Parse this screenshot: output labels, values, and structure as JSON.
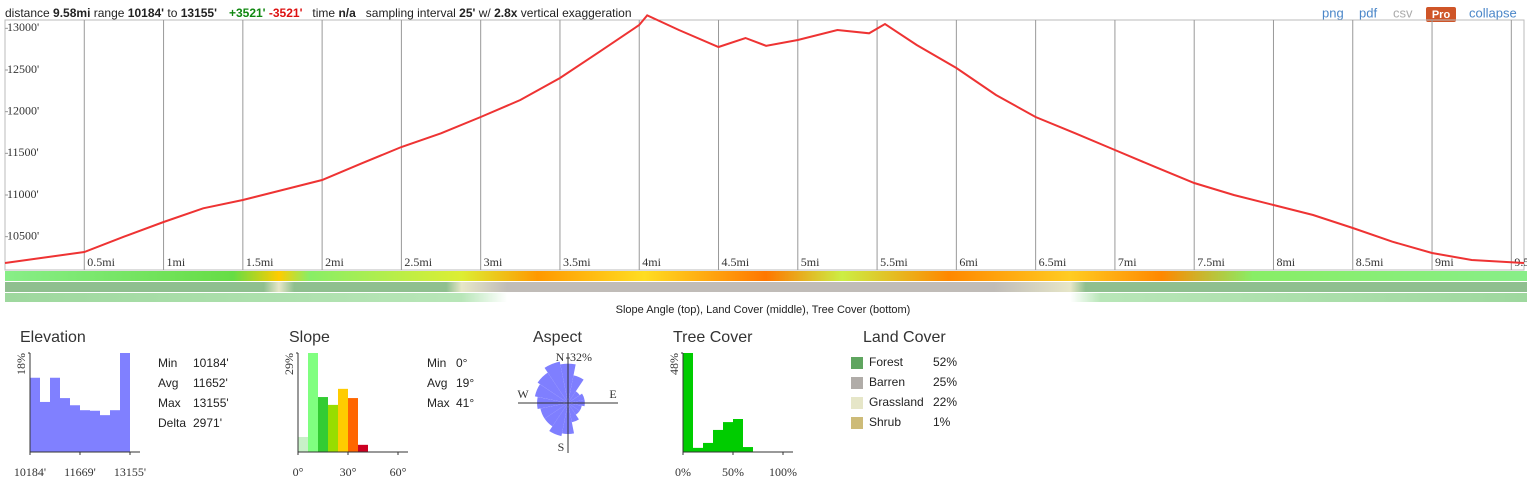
{
  "header": {
    "distance_label": "distance",
    "distance": "9.58mi",
    "range_label": "range",
    "range_min": "10184'",
    "range_to": "to",
    "range_max": "13155'",
    "gain": "+3521'",
    "loss": "-3521'",
    "time_label": "time",
    "time": "n/a",
    "interval_label": "sampling interval",
    "interval": "25'",
    "with": "w/",
    "exaggeration": "2.8x",
    "exaggeration_label": "vertical exaggeration"
  },
  "links": {
    "png": "png",
    "pdf": "pdf",
    "csv": "csv",
    "pro": "Pro",
    "collapse": "collapse"
  },
  "strips_caption": "Slope Angle (top), Land Cover (middle), Tree Cover (bottom)",
  "chart_data": [
    {
      "type": "line",
      "color": "#ee3333",
      "x": [
        0,
        0.25,
        0.5,
        0.75,
        1,
        1.25,
        1.5,
        1.75,
        2,
        2.25,
        2.5,
        2.75,
        3,
        3.25,
        3.5,
        3.75,
        4,
        4.05,
        4.25,
        4.5,
        4.67,
        4.8,
        5,
        5.25,
        5.45,
        5.55,
        5.75,
        6,
        6.25,
        6.5,
        6.75,
        7,
        7.25,
        7.5,
        7.75,
        8,
        8.25,
        8.5,
        8.75,
        9,
        9.25,
        9.58
      ],
      "values": [
        10184,
        10250,
        10316,
        10500,
        10676,
        10840,
        10940,
        11060,
        11180,
        11380,
        11576,
        11740,
        11936,
        12140,
        12404,
        12720,
        13040,
        13155,
        12980,
        12776,
        12884,
        12790,
        12860,
        12980,
        12940,
        13052,
        12800,
        12524,
        12200,
        11936,
        11740,
        11540,
        11340,
        11144,
        11000,
        10880,
        10760,
        10604,
        10440,
        10304,
        10220,
        10184
      ],
      "xlim": [
        0,
        9.58
      ],
      "ylim": [
        10100,
        13160
      ],
      "xticks": [
        {
          "value": 0.5,
          "label": "0.5mi"
        },
        {
          "value": 1,
          "label": "1mi"
        },
        {
          "value": 1.5,
          "label": "1.5mi"
        },
        {
          "value": 2,
          "label": "2mi"
        },
        {
          "value": 2.5,
          "label": "2.5mi"
        },
        {
          "value": 3,
          "label": "3mi"
        },
        {
          "value": 3.5,
          "label": "3.5mi"
        },
        {
          "value": 4,
          "label": "4mi"
        },
        {
          "value": 4.5,
          "label": "4.5mi"
        },
        {
          "value": 5,
          "label": "5mi"
        },
        {
          "value": 5.5,
          "label": "5.5mi"
        },
        {
          "value": 6,
          "label": "6mi"
        },
        {
          "value": 6.5,
          "label": "6.5mi"
        },
        {
          "value": 7,
          "label": "7mi"
        },
        {
          "value": 7.5,
          "label": "7.5mi"
        },
        {
          "value": 8,
          "label": "8mi"
        },
        {
          "value": 8.5,
          "label": "8.5mi"
        },
        {
          "value": 9,
          "label": "9mi"
        },
        {
          "value": 9.5,
          "label": "9.5mi"
        }
      ],
      "yticks": [
        {
          "value": 10500,
          "label": "10500'"
        },
        {
          "value": 11000,
          "label": "11000'"
        },
        {
          "value": 11500,
          "label": "11500'"
        },
        {
          "value": 12000,
          "label": "12000'"
        },
        {
          "value": 12500,
          "label": "12500'"
        },
        {
          "value": 13000,
          "label": "13000'"
        }
      ],
      "grid": "x"
    },
    {
      "type": "histogram",
      "title": "Elevation",
      "color": "#8080ff",
      "bins": [
        10184,
        10481.1,
        10778.2,
        11075.3,
        11372.4,
        11669.5,
        11966.6,
        12263.7,
        12560.8,
        12857.9,
        13155
      ],
      "values": [
        13.5,
        9.1,
        13.5,
        9.8,
        8.5,
        7.6,
        7.5,
        6.7,
        7.6,
        18
      ],
      "xlim": [
        10184,
        13155
      ],
      "ylim": [
        0,
        18
      ],
      "xticks": [
        {
          "value": 10184,
          "label": "10184'"
        },
        {
          "value": 11669,
          "label": "11669'"
        },
        {
          "value": 13155,
          "label": "13155'"
        }
      ],
      "yticks": [
        {
          "value": 18,
          "label": "18%"
        }
      ]
    },
    {
      "type": "histogram",
      "title": "Slope",
      "colors": [
        "#c8f0c8",
        "#80ff80",
        "#33cc33",
        "#99dd00",
        "#ffcc00",
        "#ff6600",
        "#cc0022"
      ],
      "bins": [
        0,
        6,
        12,
        18,
        24,
        30,
        36,
        42
      ],
      "values": [
        4.4,
        29,
        16.1,
        13.8,
        18.5,
        15.8,
        2.1
      ],
      "xlim": [
        0,
        60
      ],
      "ylim": [
        0,
        29
      ],
      "xticks": [
        {
          "value": 0,
          "label": "0°"
        },
        {
          "value": 30,
          "label": "30°"
        },
        {
          "value": 60,
          "label": "60°"
        }
      ],
      "yticks": [
        {
          "value": 29,
          "label": "29%"
        }
      ]
    },
    {
      "type": "polar",
      "title": "Aspect",
      "color": "#7f7fff",
      "categories": [
        "N",
        null,
        null,
        null,
        "E",
        null,
        null,
        null,
        "S",
        null,
        null,
        null,
        "W",
        null,
        null,
        null
      ],
      "values": [
        28,
        20,
        10,
        12,
        12,
        10,
        10,
        14,
        22,
        24,
        20,
        20,
        22,
        24,
        26,
        30
      ],
      "rlim": [
        0,
        32
      ],
      "rticks": [
        {
          "value": 32,
          "label": "32%"
        }
      ]
    },
    {
      "type": "histogram",
      "title": "Tree Cover",
      "color": "#00cc00",
      "bins": [
        0,
        10,
        20,
        30,
        40,
        50,
        60,
        70
      ],
      "values": [
        48,
        2,
        4.4,
        10.7,
        14.5,
        16,
        2.4
      ],
      "xlim": [
        0,
        100
      ],
      "ylim": [
        0,
        48
      ],
      "xticks": [
        {
          "value": 0,
          "label": "0%"
        },
        {
          "value": 50,
          "label": "50%"
        },
        {
          "value": 100,
          "label": "100%"
        }
      ],
      "yticks": [
        {
          "value": 48,
          "label": "48%"
        }
      ]
    }
  ],
  "stats": {
    "elevation": [
      [
        "Min",
        "10184'"
      ],
      [
        "Avg",
        "11652'"
      ],
      [
        "Max",
        "13155'"
      ],
      [
        "Delta",
        "2971'"
      ]
    ],
    "slope": [
      [
        "Min",
        "0°"
      ],
      [
        "Avg",
        "19°"
      ],
      [
        "Max",
        "41°"
      ]
    ]
  },
  "land_cover": {
    "title": "Land Cover",
    "rows": [
      {
        "name": "Forest",
        "value": "52%",
        "color": "#5fa55f"
      },
      {
        "name": "Barren",
        "value": "25%",
        "color": "#b0aca8"
      },
      {
        "name": "Grassland",
        "value": "22%",
        "color": "#e6e6c8"
      },
      {
        "name": "Shrub",
        "value": "1%",
        "color": "#cdbb78"
      }
    ]
  }
}
